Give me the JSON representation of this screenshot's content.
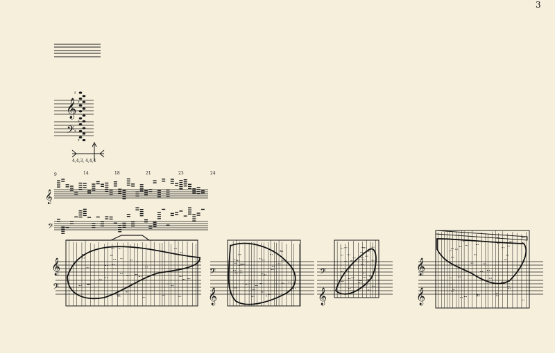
{
  "page": {
    "number": "3"
  },
  "measure_numbers": [
    "9",
    "14",
    "18",
    "21",
    "23",
    "24"
  ],
  "legend_numbers": "4,4,3, 4,4,4",
  "colors": {
    "paper": "#f5efdc",
    "ink": "#1a1a1a"
  },
  "clefs": {
    "treble": "𝄞",
    "bass": "𝄢"
  }
}
